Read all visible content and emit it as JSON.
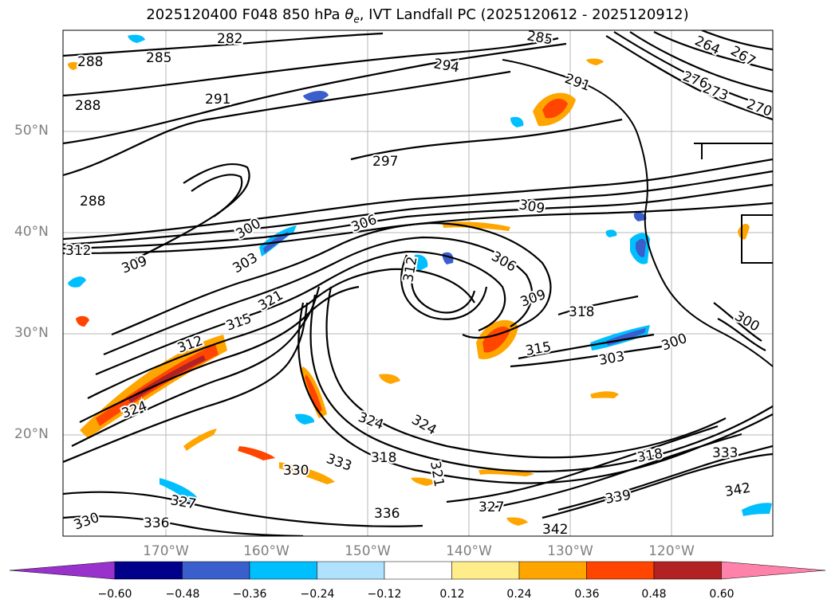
{
  "title": {
    "prefix": "2025120400 F048 850 hPa ",
    "theta": "θ",
    "theta_sub": "e",
    "suffix": ", IVT Landfall PC (2025120612 - 2025120912)"
  },
  "axes": {
    "lat_labels": [
      "50°N",
      "40°N",
      "30°N",
      "20°N"
    ],
    "lon_labels": [
      "170°W",
      "160°W",
      "150°W",
      "140°W",
      "130°W",
      "120°W"
    ]
  },
  "contour_labels": [
    "282",
    "285",
    "288",
    "288",
    "288",
    "291",
    "291",
    "294",
    "297",
    "300",
    "300",
    "300",
    "303",
    "303",
    "306",
    "306",
    "309",
    "309",
    "309",
    "312",
    "312",
    "312",
    "315",
    "315",
    "318",
    "318",
    "318",
    "321",
    "321",
    "324",
    "324",
    "324",
    "327",
    "327",
    "330",
    "330",
    "333",
    "333",
    "336",
    "336",
    "339",
    "342",
    "342",
    "264",
    "267",
    "270",
    "273",
    "276",
    "285"
  ],
  "colorbar": {
    "ticks": [
      "−0.60",
      "−0.48",
      "−0.36",
      "−0.24",
      "−0.12",
      "0.12",
      "0.24",
      "0.36",
      "0.48",
      "0.60"
    ],
    "colors": [
      "#9932cc",
      "#00008b",
      "#3a5fcd",
      "#00bfff",
      "#b0e2ff",
      "#ffffff",
      "#ffec8b",
      "#ffa500",
      "#ff4500",
      "#b22222",
      "#ff82ab"
    ]
  },
  "fill_colors": {
    "orange": "#ffa500",
    "red": "#ff4500",
    "darkred": "#b22222",
    "yellow": "#ffec8b",
    "cyan": "#00bfff",
    "blue": "#3a5fcd",
    "lightblue": "#b0e2ff"
  }
}
